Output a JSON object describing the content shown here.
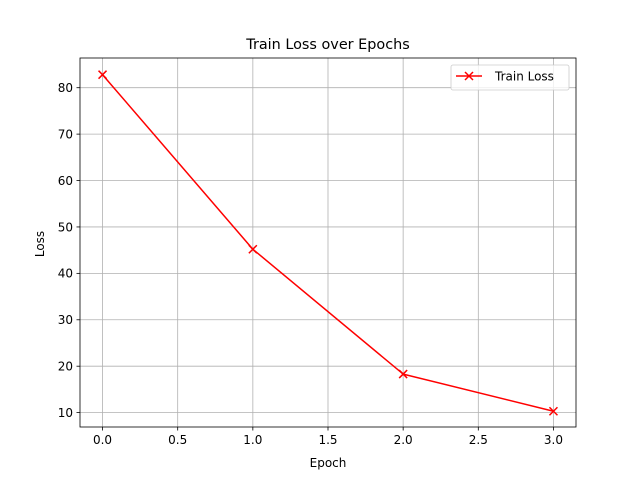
{
  "chart_data": {
    "type": "line",
    "title": "Train Loss over Epochs",
    "xlabel": "Epoch",
    "ylabel": "Loss",
    "x": [
      0,
      1,
      2,
      3
    ],
    "series": [
      {
        "name": "Train Loss",
        "color": "#ff0000",
        "marker": "x",
        "values": [
          82.8,
          45.2,
          18.3,
          10.3
        ]
      }
    ],
    "xlim": [
      -0.15,
      3.15
    ],
    "ylim": [
      6.9,
      86.4
    ],
    "xticks": [
      0.0,
      0.5,
      1.0,
      1.5,
      2.0,
      2.5,
      3.0
    ],
    "xtick_labels": [
      "0.0",
      "0.5",
      "1.0",
      "1.5",
      "2.0",
      "2.5",
      "3.0"
    ],
    "yticks": [
      10,
      20,
      30,
      40,
      50,
      60,
      70,
      80
    ],
    "ytick_labels": [
      "10",
      "20",
      "30",
      "40",
      "50",
      "60",
      "70",
      "80"
    ],
    "grid": true,
    "legend_position": "upper-right"
  }
}
